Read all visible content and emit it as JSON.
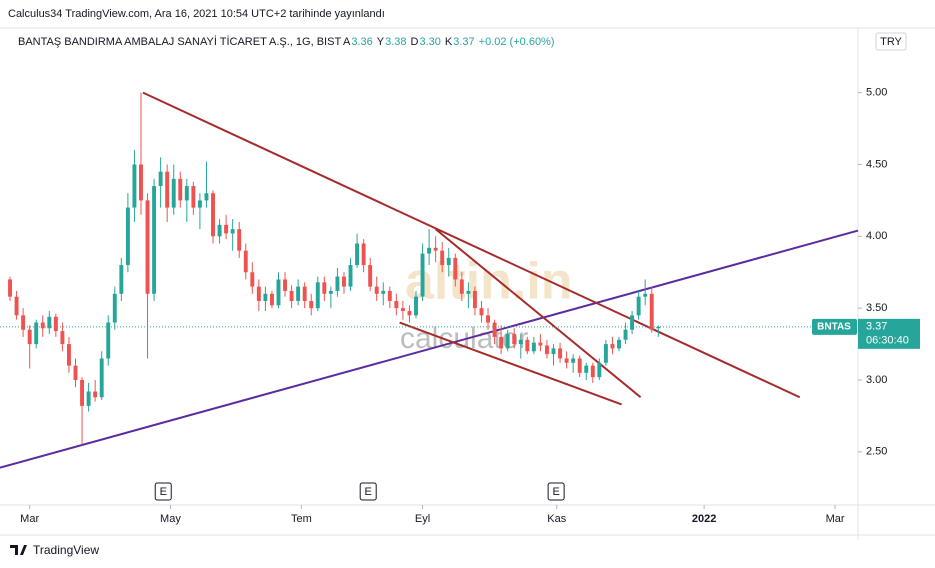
{
  "header": "Calculus34 TradingView.com, Ara 16, 2021 10:54 UTC+2 tarihinde yayınlandı",
  "footer": "TradingView",
  "chart_data": {
    "type": "candlestick",
    "title": "BANTAŞ BANDIRMA AMBALAJ SANAYİ TİCARET A.Ş., 1G, BIST",
    "ohlc_info": [
      {
        "key": "A",
        "text": "3.36"
      },
      {
        "key": "Y",
        "text": "3.38"
      },
      {
        "key": "D",
        "text": "3.30"
      },
      {
        "key": "K",
        "text": "3.37"
      }
    ],
    "change": "+0.02 (+0.60%)",
    "currency": "TRY",
    "symbol": "BNTAS",
    "last_price": {
      "value": 3.37,
      "label": "3.37"
    },
    "countdown": "06:30:40",
    "up_color": "#26a69a",
    "down_color": "#ef5350",
    "watermark": [
      "altin.in",
      "calculator"
    ],
    "xlim": [
      -1.53,
      129.5
    ],
    "xticks": [
      {
        "value": 3,
        "label": "Mar"
      },
      {
        "value": 24.5,
        "label": "May"
      },
      {
        "value": 44.5,
        "label": "Tem"
      },
      {
        "value": 63,
        "label": "Eyl"
      },
      {
        "value": 83.5,
        "label": "Kas"
      },
      {
        "value": 106,
        "label": "2022"
      },
      {
        "value": 126,
        "label": "Mar"
      }
    ],
    "ylim": [
      2.13,
      5.45
    ],
    "yticks": [
      {
        "value": 2.5,
        "label": "2.50"
      },
      {
        "value": 3,
        "label": "3.00"
      },
      {
        "value": 3.5,
        "label": "3.50"
      },
      {
        "value": 4,
        "label": "4.00"
      },
      {
        "value": 4.5,
        "label": "4.50"
      },
      {
        "value": 5,
        "label": "5.00"
      }
    ],
    "events": [
      {
        "x": 23.4,
        "label": "E"
      },
      {
        "x": 54.7,
        "label": "E"
      },
      {
        "x": 83.4,
        "label": "E"
      }
    ],
    "trendlines": [
      {
        "color": "#5b2c9f",
        "points": [
          [
            -1.53,
            2.39
          ],
          [
            129.5,
            4.04
          ]
        ]
      },
      {
        "color": "#a52a2a",
        "points": [
          [
            20.3,
            5.0
          ],
          [
            120.6,
            2.88
          ]
        ]
      },
      {
        "color": "#a52a2a",
        "points": [
          [
            65,
            4.05
          ],
          [
            96.3,
            2.88
          ]
        ]
      },
      {
        "color": "#a52a2a",
        "points": [
          [
            59.5,
            3.4
          ],
          [
            93.4,
            2.83
          ]
        ]
      }
    ],
    "candles": [
      [
        3.7,
        3.72,
        3.55,
        3.58
      ],
      [
        3.58,
        3.62,
        3.42,
        3.45
      ],
      [
        3.45,
        3.5,
        3.3,
        3.35
      ],
      [
        3.35,
        3.38,
        3.08,
        3.25
      ],
      [
        3.25,
        3.42,
        3.22,
        3.4
      ],
      [
        3.4,
        3.45,
        3.3,
        3.36
      ],
      [
        3.36,
        3.48,
        3.32,
        3.44
      ],
      [
        3.44,
        3.46,
        3.3,
        3.34
      ],
      [
        3.34,
        3.4,
        3.2,
        3.25
      ],
      [
        3.25,
        3.3,
        3.05,
        3.1
      ],
      [
        3.1,
        3.15,
        2.95,
        3.0
      ],
      [
        3.0,
        3.02,
        2.55,
        2.82
      ],
      [
        2.82,
        2.98,
        2.78,
        2.92
      ],
      [
        2.92,
        3.0,
        2.85,
        2.88
      ],
      [
        2.88,
        3.2,
        2.86,
        3.15
      ],
      [
        3.15,
        3.45,
        3.1,
        3.4
      ],
      [
        3.4,
        3.65,
        3.35,
        3.6
      ],
      [
        3.6,
        3.85,
        3.55,
        3.8
      ],
      [
        3.8,
        4.3,
        3.75,
        4.2
      ],
      [
        4.2,
        4.6,
        4.1,
        4.5
      ],
      [
        4.5,
        5.0,
        4.15,
        4.25
      ],
      [
        4.25,
        4.3,
        3.15,
        3.6
      ],
      [
        3.6,
        4.4,
        3.55,
        4.35
      ],
      [
        4.35,
        4.55,
        4.2,
        4.45
      ],
      [
        4.45,
        4.5,
        4.1,
        4.2
      ],
      [
        4.2,
        4.5,
        4.15,
        4.4
      ],
      [
        4.4,
        4.45,
        4.2,
        4.25
      ],
      [
        4.25,
        4.4,
        4.1,
        4.35
      ],
      [
        4.35,
        4.38,
        4.15,
        4.2
      ],
      [
        4.2,
        4.3,
        4.05,
        4.25
      ],
      [
        4.25,
        4.52,
        4.2,
        4.3
      ],
      [
        4.3,
        4.32,
        3.95,
        4.0
      ],
      [
        4.0,
        4.12,
        3.95,
        4.08
      ],
      [
        4.08,
        4.15,
        3.98,
        4.02
      ],
      [
        4.02,
        4.12,
        3.9,
        4.05
      ],
      [
        4.05,
        4.1,
        3.85,
        3.9
      ],
      [
        3.9,
        3.95,
        3.7,
        3.75
      ],
      [
        3.75,
        3.82,
        3.6,
        3.65
      ],
      [
        3.65,
        3.7,
        3.48,
        3.55
      ],
      [
        3.55,
        3.65,
        3.48,
        3.6
      ],
      [
        3.6,
        3.62,
        3.5,
        3.52
      ],
      [
        3.52,
        3.75,
        3.5,
        3.7
      ],
      [
        3.7,
        3.75,
        3.58,
        3.62
      ],
      [
        3.62,
        3.66,
        3.5,
        3.55
      ],
      [
        3.55,
        3.7,
        3.52,
        3.65
      ],
      [
        3.65,
        3.68,
        3.5,
        3.55
      ],
      [
        3.55,
        3.6,
        3.45,
        3.5
      ],
      [
        3.5,
        3.72,
        3.48,
        3.68
      ],
      [
        3.68,
        3.72,
        3.55,
        3.6
      ],
      [
        3.6,
        3.65,
        3.5,
        3.62
      ],
      [
        3.62,
        3.78,
        3.58,
        3.72
      ],
      [
        3.72,
        3.75,
        3.6,
        3.65
      ],
      [
        3.65,
        3.85,
        3.62,
        3.8
      ],
      [
        3.8,
        4.02,
        3.78,
        3.95
      ],
      [
        3.95,
        3.98,
        3.75,
        3.8
      ],
      [
        3.8,
        3.85,
        3.62,
        3.65
      ],
      [
        3.65,
        3.72,
        3.55,
        3.6
      ],
      [
        3.6,
        3.68,
        3.52,
        3.62
      ],
      [
        3.62,
        3.65,
        3.5,
        3.55
      ],
      [
        3.55,
        3.6,
        3.45,
        3.5
      ],
      [
        3.5,
        3.55,
        3.42,
        3.48
      ],
      [
        3.48,
        3.52,
        3.4,
        3.45
      ],
      [
        3.45,
        3.62,
        3.43,
        3.58
      ],
      [
        3.58,
        3.95,
        3.55,
        3.88
      ],
      [
        3.88,
        4.05,
        3.8,
        3.92
      ],
      [
        3.92,
        4.0,
        3.82,
        3.9
      ],
      [
        3.9,
        3.96,
        3.75,
        3.8
      ],
      [
        3.8,
        3.92,
        3.72,
        3.85
      ],
      [
        3.85,
        3.88,
        3.65,
        3.7
      ],
      [
        3.7,
        3.75,
        3.55,
        3.6
      ],
      [
        3.6,
        3.68,
        3.5,
        3.62
      ],
      [
        3.62,
        3.65,
        3.45,
        3.5
      ],
      [
        3.5,
        3.55,
        3.4,
        3.45
      ],
      [
        3.45,
        3.5,
        3.35,
        3.4
      ],
      [
        3.4,
        3.42,
        3.25,
        3.3
      ],
      [
        3.3,
        3.38,
        3.18,
        3.22
      ],
      [
        3.22,
        3.35,
        3.2,
        3.32
      ],
      [
        3.32,
        3.36,
        3.22,
        3.25
      ],
      [
        3.25,
        3.32,
        3.15,
        3.28
      ],
      [
        3.28,
        3.3,
        3.18,
        3.2
      ],
      [
        3.2,
        3.3,
        3.18,
        3.26
      ],
      [
        3.26,
        3.32,
        3.2,
        3.24
      ],
      [
        3.24,
        3.28,
        3.15,
        3.18
      ],
      [
        3.18,
        3.25,
        3.1,
        3.22
      ],
      [
        3.22,
        3.26,
        3.12,
        3.15
      ],
      [
        3.15,
        3.2,
        3.08,
        3.12
      ],
      [
        3.12,
        3.18,
        3.05,
        3.15
      ],
      [
        3.15,
        3.17,
        3.02,
        3.05
      ],
      [
        3.05,
        3.12,
        3.0,
        3.1
      ],
      [
        3.1,
        3.12,
        2.98,
        3.02
      ],
      [
        3.02,
        3.15,
        3.0,
        3.12
      ],
      [
        3.12,
        3.28,
        3.1,
        3.25
      ],
      [
        3.25,
        3.3,
        3.18,
        3.22
      ],
      [
        3.22,
        3.3,
        3.2,
        3.28
      ],
      [
        3.28,
        3.4,
        3.25,
        3.35
      ],
      [
        3.35,
        3.48,
        3.32,
        3.45
      ],
      [
        3.45,
        3.62,
        3.42,
        3.58
      ],
      [
        3.58,
        3.7,
        3.52,
        3.6
      ],
      [
        3.6,
        3.65,
        3.33,
        3.35
      ],
      [
        3.36,
        3.38,
        3.3,
        3.37
      ]
    ]
  }
}
